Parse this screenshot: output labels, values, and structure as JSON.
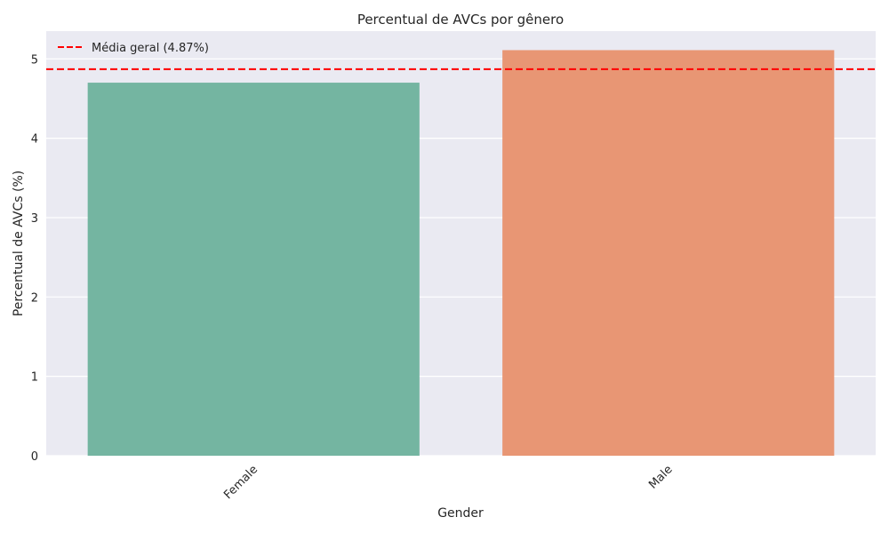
{
  "chart_data": {
    "type": "bar",
    "title": "Percentual de AVCs por gênero",
    "xlabel": "Gender",
    "ylabel": "Percentual de AVCs (%)",
    "categories": [
      "Female",
      "Male"
    ],
    "values": [
      4.7,
      5.11
    ],
    "bar_colors": [
      "#74b5a1",
      "#e89674"
    ],
    "ylim": [
      0,
      5.35
    ],
    "yticks": [
      0,
      1,
      2,
      3,
      4,
      5
    ],
    "xtick_rotation": 45,
    "grid": true,
    "background_color": "#eaeaf2",
    "reference_line": {
      "label": "Média geral (4.87%)",
      "value": 4.87,
      "color": "#ff0000",
      "style": "dashed"
    },
    "legend_position": "top-left"
  }
}
